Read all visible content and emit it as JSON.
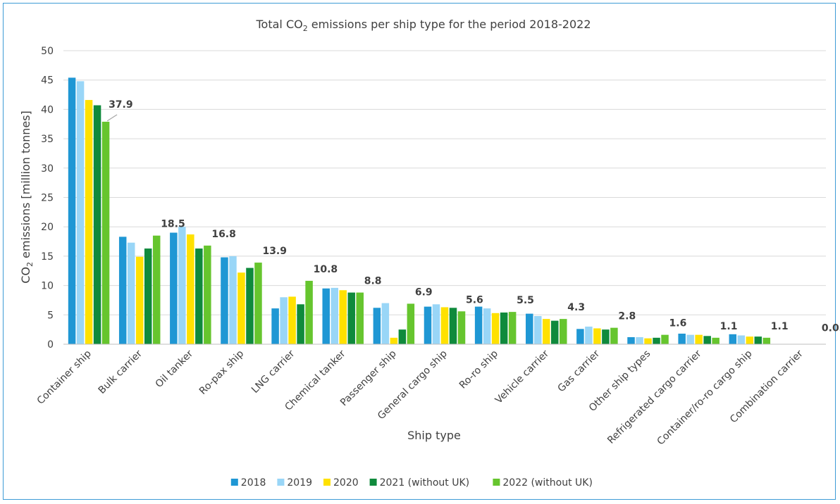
{
  "chart_data": {
    "type": "bar",
    "title": "Total CO",
    "title_sub": "2",
    "title_rest": " emissions per ship type for the period 2018-2022",
    "xlabel": "Ship type",
    "ylabel": "CO",
    "ylabel_sub": "2",
    "ylabel_rest": " emissions [million tonnes]",
    "ylim": [
      0,
      50
    ],
    "yticks": [
      "0",
      "5",
      "10",
      "15",
      "20",
      "25",
      "30",
      "35",
      "40",
      "45",
      "50"
    ],
    "grid": true,
    "legend_position": "bottom",
    "categories": [
      "Container ship",
      "Bulk carrier",
      "Oil tanker",
      "Ro-pax ship",
      "LNG carrier",
      "Chemical tanker",
      "Passenger ship",
      "General cargo ship",
      "Ro-ro ship",
      "Vehicle carrier",
      "Gas carrier",
      "Other ship types",
      "Refrigerated cargo carrier",
      "Container/ro-ro cargo ship",
      "Combination carrier"
    ],
    "series": [
      {
        "name": "2018",
        "color": "#1f97d4",
        "values": [
          45.4,
          18.3,
          19.0,
          14.8,
          6.1,
          9.5,
          6.2,
          6.4,
          6.4,
          5.2,
          2.6,
          1.2,
          1.8,
          1.7,
          0.0
        ]
      },
      {
        "name": "2019",
        "color": "#99d6f7",
        "values": [
          44.8,
          17.3,
          20.0,
          15.0,
          8.0,
          9.6,
          7.0,
          6.8,
          6.1,
          4.8,
          3.0,
          1.2,
          1.6,
          1.5,
          0.0
        ]
      },
      {
        "name": "2020",
        "color": "#ffe100",
        "values": [
          41.6,
          14.9,
          18.7,
          12.2,
          8.1,
          9.2,
          1.1,
          6.3,
          5.3,
          4.3,
          2.7,
          1.0,
          1.6,
          1.3,
          0.0
        ]
      },
      {
        "name": "2021 (without UK)",
        "color": "#0f8a3c",
        "values": [
          40.7,
          16.3,
          16.3,
          13.0,
          6.8,
          8.8,
          2.5,
          6.2,
          5.4,
          4.0,
          2.5,
          1.1,
          1.4,
          1.3,
          0.0
        ]
      },
      {
        "name": "2022 (without UK)",
        "color": "#66c52e",
        "values": [
          37.9,
          18.5,
          16.8,
          13.9,
          10.8,
          8.8,
          6.9,
          5.6,
          5.5,
          4.3,
          2.8,
          1.6,
          1.1,
          1.1,
          0.05
        ]
      }
    ],
    "data_labels": [
      "37.9",
      "18.5",
      "16.8",
      "13.9",
      "10.8",
      "8.8",
      "6.9",
      "5.6",
      "5.5",
      "4.3",
      "2.8",
      "1.6",
      "1.1",
      "1.1",
      "0.05"
    ]
  }
}
